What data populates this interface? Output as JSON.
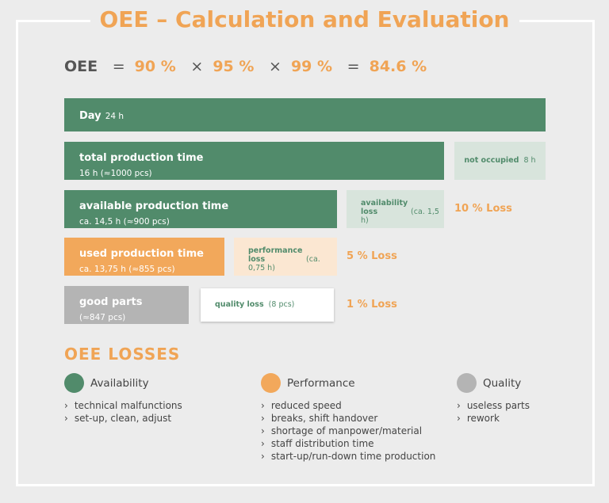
{
  "title": "OEE – Calculation and Evaluation",
  "formula": {
    "label": "OEE",
    "equals": "=",
    "times": "×",
    "factors": [
      "90 %",
      "95 %",
      "99 %"
    ],
    "result": "84.6 %"
  },
  "bars": [
    {
      "title": "Day",
      "detail": "24 h"
    },
    {
      "title": "total production time",
      "detail": "16 h (≈1000 pcs)"
    },
    {
      "title": "available production time",
      "detail": "ca. 14,5 h (≈900 pcs)"
    },
    {
      "title": "used production time",
      "detail": "ca. 13,75 h (≈855 pcs)"
    },
    {
      "title": "good parts",
      "detail": "(≈847 pcs)"
    }
  ],
  "gaps": [
    {
      "label": "not occupied",
      "detail": "8 h"
    },
    {
      "label": "availability loss",
      "detail": "(ca. 1,5 h)",
      "loss": "10 % Loss"
    },
    {
      "label": "performance loss",
      "detail": "(ca. 0,75 h)",
      "loss": "5 % Loss"
    },
    {
      "label": "quality loss",
      "detail": "(8 pcs)",
      "loss": "1 % Loss"
    }
  ],
  "losses": {
    "title": "OEE LOSSES",
    "categories": [
      {
        "name": "Availability",
        "items": [
          "technical malfunctions",
          "set-up, clean, adjust"
        ]
      },
      {
        "name": "Performance",
        "items": [
          "reduced speed",
          "breaks, shift handover",
          "shortage of manpower/material",
          "staff distribution time",
          "start-up/run-down time production"
        ]
      },
      {
        "name": "Quality",
        "items": [
          "useless parts",
          "rework"
        ]
      }
    ]
  }
}
